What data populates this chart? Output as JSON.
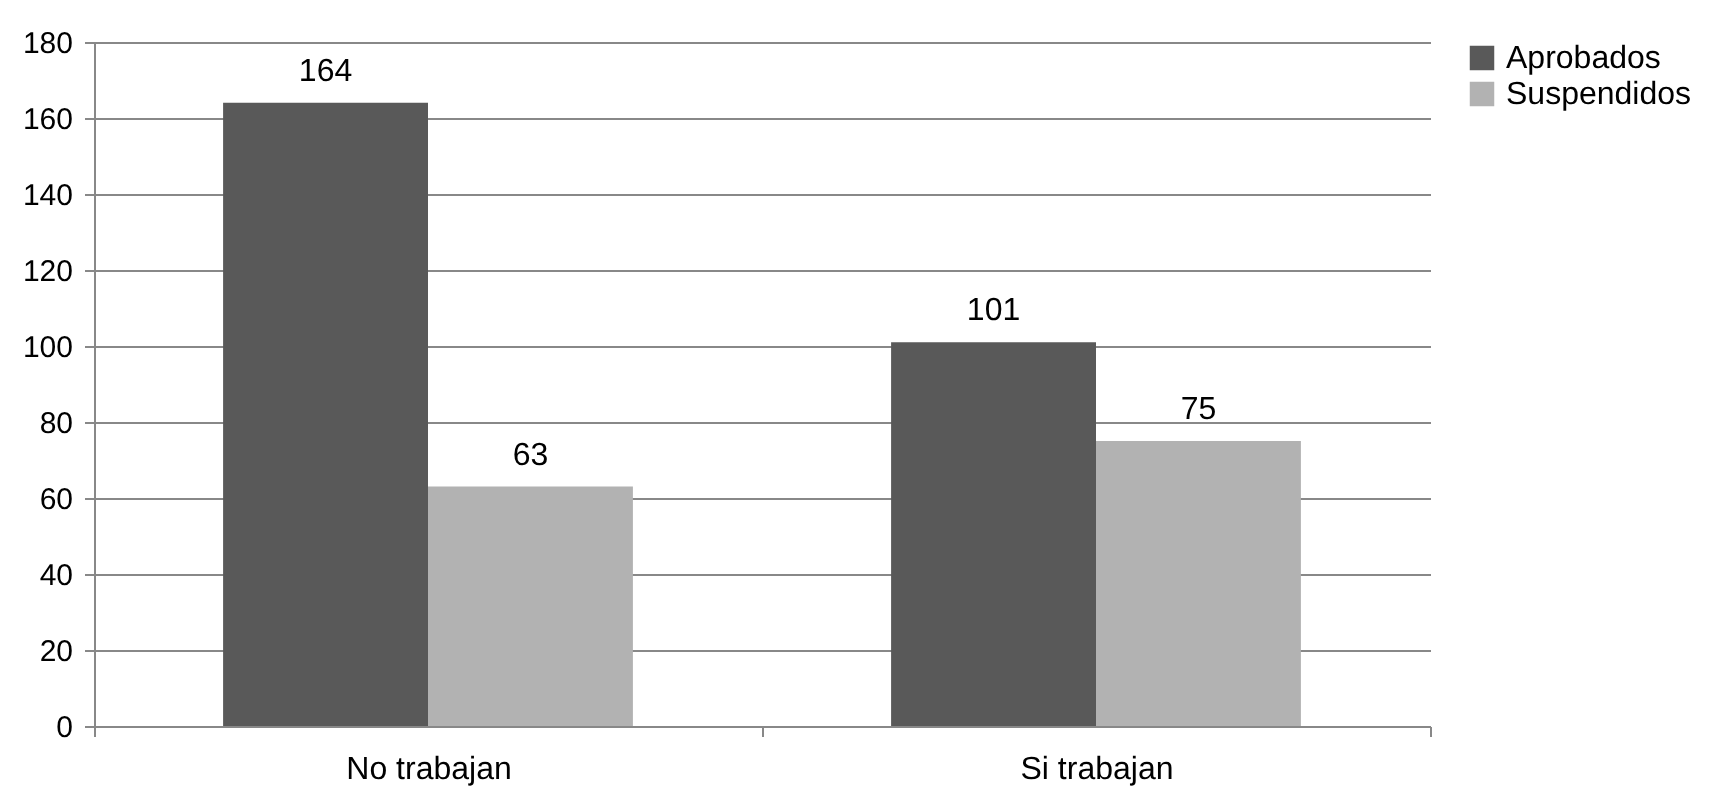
{
  "chart_data": {
    "type": "bar",
    "categories": [
      "No trabajan",
      "Si trabajan"
    ],
    "series": [
      {
        "name": "Aprobados",
        "color": "#595959",
        "values": [
          164,
          101
        ]
      },
      {
        "name": "Suspendidos",
        "color": "#b2b2b2",
        "values": [
          63,
          75
        ]
      }
    ],
    "ylim": [
      0,
      180
    ],
    "yticks": [
      0,
      20,
      40,
      60,
      80,
      100,
      120,
      140,
      160,
      180
    ],
    "grid": "y",
    "legend": "right",
    "data_labels": true
  }
}
